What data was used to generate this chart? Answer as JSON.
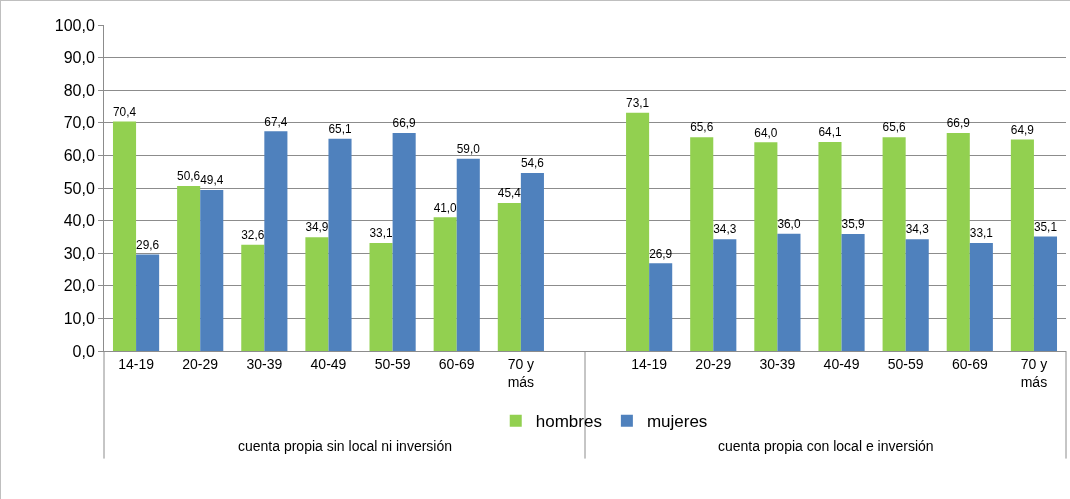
{
  "chart_data": {
    "type": "bar",
    "categories": [
      "14-19",
      "20-29",
      "30-39",
      "40-49",
      "50-59",
      "60-69",
      "70 y más",
      null,
      "14-19",
      "20-29",
      "30-39",
      "40-49",
      "50-59",
      "60-69",
      "70 y más"
    ],
    "series": [
      {
        "name": "hombres",
        "color": "#92d050",
        "values": [
          70.4,
          50.6,
          32.6,
          34.9,
          33.1,
          41.0,
          45.4,
          null,
          73.1,
          65.6,
          64.0,
          64.1,
          65.6,
          66.9,
          64.9
        ],
        "value_labels": [
          "70,4",
          "50,6",
          "32,6",
          "34,9",
          "33,1",
          "41,0",
          "45,4",
          null,
          "73,1",
          "65,6",
          "64,0",
          "64,1",
          "65,6",
          "66,9",
          "64,9"
        ]
      },
      {
        "name": "mujeres",
        "color": "#4f81bd",
        "values": [
          29.6,
          49.4,
          67.4,
          65.1,
          66.9,
          59.0,
          54.6,
          null,
          26.9,
          34.3,
          36.0,
          35.9,
          34.3,
          33.1,
          35.1
        ],
        "value_labels": [
          "29,6",
          "49,4",
          "67,4",
          "65,1",
          "66,9",
          "59,0",
          "54,6",
          null,
          "26,9",
          "34,3",
          "36,0",
          "35,9",
          "34,3",
          "33,1",
          "35,1"
        ]
      }
    ],
    "annotations": [
      "cuenta propia sin local ni inversión",
      "cuenta propia con local e inversión"
    ],
    "ylim": [
      0,
      100
    ],
    "yticks": [
      {
        "value": 0,
        "label": "0,0"
      },
      {
        "value": 10,
        "label": "10,0"
      },
      {
        "value": 20,
        "label": "20,0"
      },
      {
        "value": 30,
        "label": "30,0"
      },
      {
        "value": 40,
        "label": "40,0"
      },
      {
        "value": 50,
        "label": "50,0"
      },
      {
        "value": 60,
        "label": "60,0"
      },
      {
        "value": 70,
        "label": "70,0"
      },
      {
        "value": 80,
        "label": "80,0"
      },
      {
        "value": 90,
        "label": "90,0"
      },
      {
        "value": 100,
        "label": "100,0"
      }
    ],
    "grid": "y",
    "legend": "bottom"
  }
}
